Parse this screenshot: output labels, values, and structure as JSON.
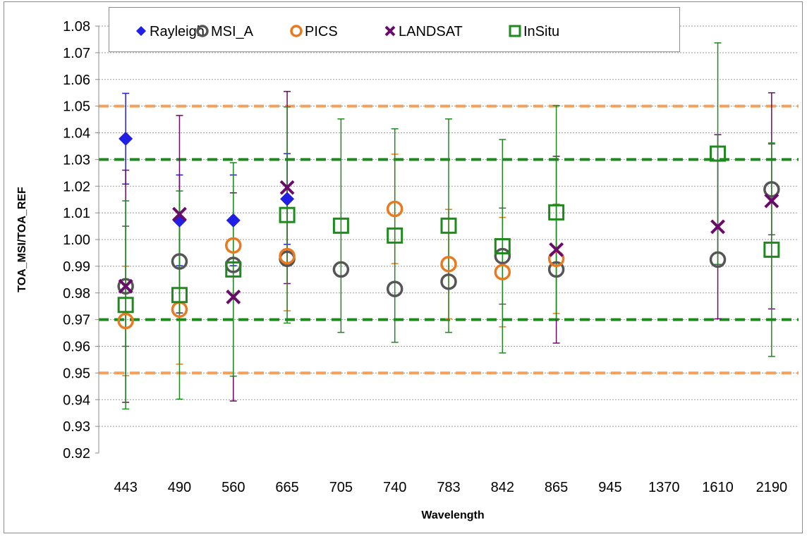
{
  "chart_data": {
    "type": "scatter",
    "xlabel": "Wavelength",
    "ylabel": "TOA_MSI/TOA_REF",
    "categories": [
      "443",
      "490",
      "560",
      "665",
      "705",
      "740",
      "783",
      "842",
      "865",
      "945",
      "1370",
      "1610",
      "2190"
    ],
    "ylim": [
      0.92,
      1.08
    ],
    "yticks": [
      "0.92",
      "0.93",
      "0.94",
      "0.95",
      "0.96",
      "0.97",
      "0.98",
      "0.99",
      "1.00",
      "1.01",
      "1.02",
      "1.03",
      "1.04",
      "1.05",
      "1.06",
      "1.07",
      "1.08"
    ],
    "grid": "horizontal dotted",
    "legend_position": "top",
    "reference_lines": [
      {
        "value": 1.05,
        "color": "#f4a05a",
        "style": "dashed"
      },
      {
        "value": 0.95,
        "color": "#f4a05a",
        "style": "dashed"
      },
      {
        "value": 1.03,
        "color": "#1e8a1e",
        "style": "dashed"
      },
      {
        "value": 0.97,
        "color": "#1e8a1e",
        "style": "dashed"
      }
    ],
    "series": [
      {
        "name": "Rayleigh",
        "marker": "diamond",
        "color": "#1f1fe6",
        "error_color": "#1f1fe6",
        "values": [
          1.0378,
          1.0072,
          1.0072,
          1.0152,
          null,
          null,
          null,
          null,
          null,
          null,
          null,
          null,
          null
        ],
        "errors": [
          0.017,
          0.017,
          0.017,
          0.017,
          null,
          null,
          null,
          null,
          null,
          null,
          null,
          null,
          null
        ]
      },
      {
        "name": "MSI_A",
        "marker": "open-circle",
        "color": "#555555",
        "error_color": "#555555",
        "values": [
          0.9825,
          0.9918,
          0.9905,
          0.9928,
          0.9888,
          0.9815,
          0.9842,
          0.9938,
          0.9888,
          null,
          null,
          0.9925,
          1.0188
        ],
        "errors": [
          0.0225,
          null,
          null,
          null,
          null,
          null,
          null,
          0.018,
          null,
          null,
          null,
          null,
          0.017
        ]
      },
      {
        "name": "PICS",
        "marker": "open-circle",
        "color": "#e97a20",
        "error_color": "#e97a20",
        "values": [
          0.9695,
          0.9738,
          0.9978,
          0.9938,
          null,
          1.0115,
          0.9908,
          0.9878,
          0.9928,
          null,
          null,
          null,
          null
        ],
        "errors": [
          0.0205,
          0.0205,
          null,
          0.0205,
          null,
          0.0205,
          0.0205,
          0.0205,
          0.0205,
          null,
          null,
          null,
          null
        ]
      },
      {
        "name": "LANDSAT",
        "marker": "x",
        "color": "#6a0a6a",
        "error_color": "#6a0a6a",
        "values": [
          0.9825,
          1.0095,
          0.9785,
          1.0195,
          null,
          null,
          null,
          null,
          0.9962,
          null,
          null,
          1.0048,
          1.0145
        ],
        "errors": [
          0.0435,
          0.037,
          0.039,
          0.036,
          null,
          null,
          null,
          null,
          0.035,
          null,
          null,
          0.0345,
          0.0405
        ]
      },
      {
        "name": "InSitu",
        "marker": "open-square",
        "color": "#1e8a1e",
        "error_color": "#1e8a1e",
        "values": [
          0.9755,
          0.9792,
          0.9888,
          1.0092,
          1.0052,
          1.0015,
          1.0052,
          0.9975,
          1.0102,
          null,
          null,
          1.0322,
          0.9962
        ],
        "errors": [
          0.039,
          0.039,
          0.04,
          0.0405,
          0.04,
          0.04,
          0.04,
          0.04,
          0.04,
          null,
          null,
          0.0415,
          0.04
        ]
      }
    ]
  }
}
